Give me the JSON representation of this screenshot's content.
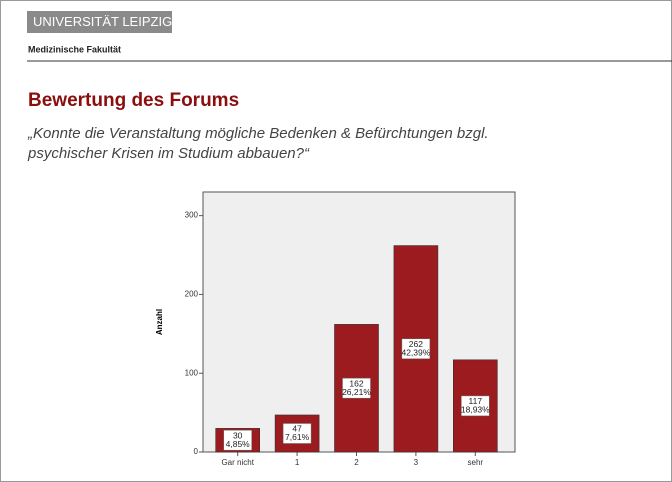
{
  "header": {
    "university": "UNIVERSITÄT LEIPZIG",
    "faculty": "Medizinische Fakultät"
  },
  "chart_data": {
    "type": "bar",
    "title": "Bewertung des Forums",
    "subtitle": [
      "„Konnte die Veranstaltung mögliche Bedenken & Befürchtungen bzgl.",
      "psychischer Krisen im Studium abbauen?“"
    ],
    "y_label": "Anzahl",
    "categories": [
      "Gar nicht",
      "1",
      "2",
      "3",
      "sehr"
    ],
    "values": [
      30,
      47,
      162,
      262,
      117
    ],
    "percent_labels": [
      "4,85%",
      "7,61%",
      "26,21%",
      "42,39%",
      "18,93%"
    ],
    "color": "#9b1b1f",
    "ylim": [
      0,
      330
    ],
    "yticks": [
      0,
      100,
      200,
      300
    ]
  }
}
